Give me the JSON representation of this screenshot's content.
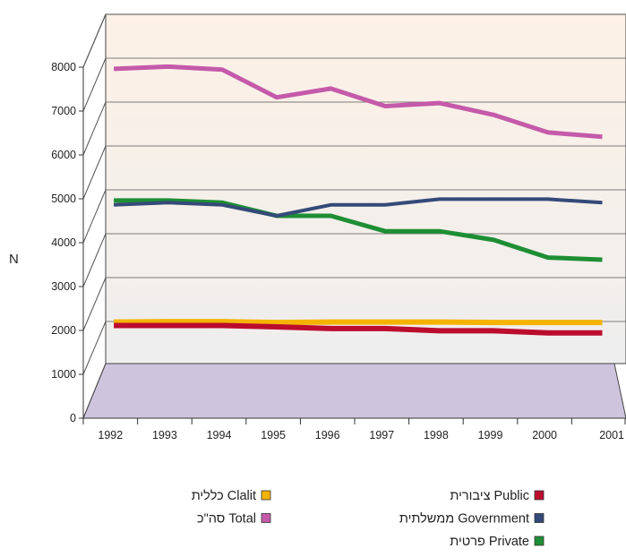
{
  "chart_data": {
    "type": "line",
    "style": "3d",
    "xlabel": "",
    "ylabel": "N",
    "ylim": [
      0,
      8000
    ],
    "yticks": [
      0,
      1000,
      2000,
      3000,
      4000,
      5000,
      6000,
      7000,
      8000
    ],
    "categories": [
      "1992",
      "1993",
      "1994",
      "1995",
      "1996",
      "1997",
      "1998",
      "1999",
      "2000",
      "2001"
    ],
    "grid": true,
    "legend_position": "bottom",
    "series": [
      {
        "name": "סה\"כ Total",
        "color": "#c45aa9",
        "values": [
          7300,
          7350,
          7280,
          6650,
          6850,
          6450,
          6520,
          6250,
          5850,
          5750
        ]
      },
      {
        "name": "ממשלתית Government",
        "color": "#344a78",
        "values": [
          4200,
          4250,
          4200,
          3950,
          4200,
          4200,
          4330,
          4330,
          4330,
          4250
        ]
      },
      {
        "name": "פרטית Private",
        "color": "#1e8e34",
        "values": [
          4300,
          4300,
          4250,
          3950,
          3950,
          3600,
          3600,
          3400,
          3000,
          2950
        ]
      },
      {
        "name": "כללית Clalit",
        "color": "#f5b300",
        "values": [
          1530,
          1540,
          1540,
          1520,
          1530,
          1530,
          1530,
          1520,
          1520,
          1520
        ]
      },
      {
        "name": "ציבורית Public",
        "color": "#bb0c2e",
        "values": [
          1450,
          1450,
          1450,
          1420,
          1380,
          1380,
          1330,
          1330,
          1280,
          1280
        ]
      }
    ],
    "legend": {
      "left_column": [
        {
          "label": "כללית Clalit",
          "color": "#f5b300"
        },
        {
          "label": "סה\"כ Total",
          "color": "#c45aa9"
        }
      ],
      "right_column": [
        {
          "label": "ציבורית Public",
          "color": "#bb0c2e"
        },
        {
          "label": "ממשלתית Government",
          "color": "#344a78"
        },
        {
          "label": "פרטית Private",
          "color": "#1e8e34"
        }
      ]
    },
    "colors": {
      "back_wall_top": "#fdf1e6",
      "back_wall_bottom": "#eeeeee",
      "floor": "#cfc4de",
      "grid": "#555555"
    }
  }
}
